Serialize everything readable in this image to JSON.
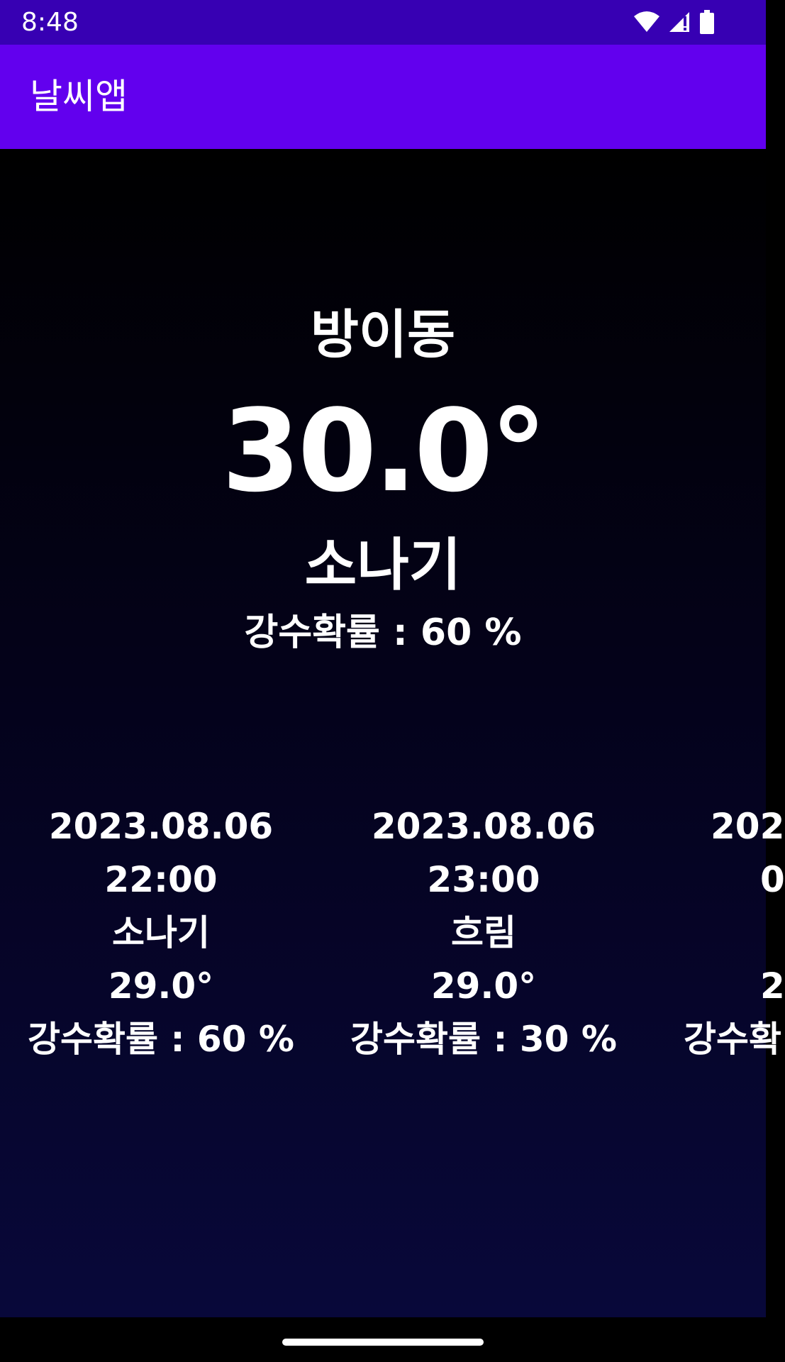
{
  "status_bar": {
    "time": "8:48",
    "icons": [
      "wifi-icon",
      "signal-icon",
      "battery-icon"
    ]
  },
  "app_bar": {
    "title": "날씨앱"
  },
  "current": {
    "location": "방이동",
    "temperature": "30.0°",
    "condition": "소나기",
    "precip_label": "강수확률 : 60 %"
  },
  "forecast": [
    {
      "date": "2023.08.06",
      "time": "22:00",
      "condition": "소나기",
      "temperature": "29.0°",
      "precip_label": "강수확률 : 60 %"
    },
    {
      "date": "2023.08.06",
      "time": "23:00",
      "condition": "흐림",
      "temperature": "29.0°",
      "precip_label": "강수확률 : 30 %"
    },
    {
      "date": "202",
      "time": "0",
      "condition": "",
      "temperature": "2",
      "precip_label": "강수확"
    }
  ],
  "colors": {
    "status_bar": "#3700b3",
    "app_bar": "#6200ee",
    "text": "#ffffff"
  }
}
